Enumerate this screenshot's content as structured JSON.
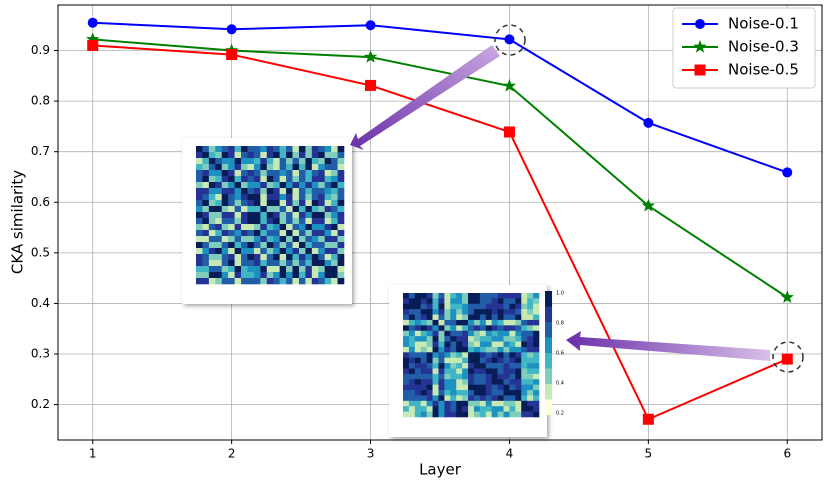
{
  "chart_data": {
    "type": "line",
    "xlabel": "Layer",
    "ylabel": "CKA similarity",
    "x": [
      1,
      2,
      3,
      4,
      5,
      6
    ],
    "series": [
      {
        "name": "Noise-0.1",
        "color": "#0000ff",
        "marker": "circle",
        "values": [
          0.955,
          0.942,
          0.95,
          0.922,
          0.757,
          0.659
        ]
      },
      {
        "name": "Noise-0.3",
        "color": "#008000",
        "marker": "star",
        "values": [
          0.922,
          0.9,
          0.887,
          0.83,
          0.593,
          0.412
        ]
      },
      {
        "name": "Noise-0.5",
        "color": "#ff0000",
        "marker": "square",
        "values": [
          0.91,
          0.892,
          0.831,
          0.739,
          0.171,
          0.29
        ]
      }
    ],
    "xlim": [
      0.75,
      6.25
    ],
    "xticks": [
      1,
      2,
      3,
      4,
      5,
      6
    ],
    "ylim": [
      0.13,
      0.99
    ],
    "yticks": [
      0.2,
      0.3,
      0.4,
      0.5,
      0.6,
      0.7,
      0.8,
      0.9
    ],
    "grid": true,
    "legend": "upper right",
    "colorbar_labels": [
      "1.0",
      "0.8",
      "0.6",
      "0.4",
      "0.2"
    ]
  }
}
